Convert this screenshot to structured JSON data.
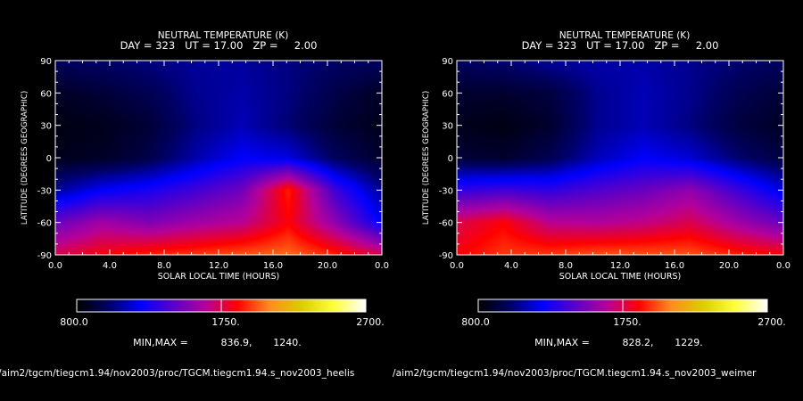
{
  "chart_data": [
    {
      "type": "heatmap",
      "title": "NEUTRAL TEMPERATURE (K)",
      "subtitle": "DAY = 323   UT = 17.00   ZP =     2.00",
      "xlabel": "SOLAR LOCAL TIME (HOURS)",
      "ylabel": "LATITUDE (DEGREES GEOGRAPHIC)",
      "xlim": [
        0,
        24
      ],
      "ylim": [
        -90,
        90
      ],
      "x_ticks": [
        "0.0",
        "4.0",
        "8.0",
        "12.0",
        "16.0",
        "20.0",
        "0.0"
      ],
      "x_tick_values": [
        0,
        4,
        8,
        12,
        16,
        20,
        24
      ],
      "y_ticks": [
        "90",
        "60",
        "30",
        "0",
        "-30",
        "-60",
        "-90"
      ],
      "y_tick_values": [
        90,
        60,
        30,
        0,
        -30,
        -60,
        -90
      ],
      "colorbar": {
        "min_label": "800.0",
        "mid_label": "1750.",
        "max_label": "2700.",
        "range": [
          800,
          2700
        ]
      },
      "minmax_label": "MIN,MAX =",
      "min_value": "836.9,",
      "max_value": "1240.",
      "min": 836.9,
      "max": 1240,
      "field": [
        [
          0.1,
          0.11,
          0.13,
          0.15,
          0.15,
          0.13,
          0.11,
          0.1
        ],
        [
          0.04,
          0.06,
          0.09,
          0.14,
          0.16,
          0.13,
          0.08,
          0.04
        ],
        [
          0.02,
          0.03,
          0.06,
          0.13,
          0.17,
          0.12,
          0.06,
          0.03
        ],
        [
          0.03,
          0.04,
          0.08,
          0.16,
          0.22,
          0.2,
          0.1,
          0.05
        ],
        [
          0.15,
          0.22,
          0.25,
          0.3,
          0.36,
          0.58,
          0.3,
          0.14
        ],
        [
          0.35,
          0.42,
          0.38,
          0.42,
          0.45,
          0.55,
          0.4,
          0.22
        ],
        [
          0.5,
          0.55,
          0.58,
          0.6,
          0.62,
          0.64,
          0.58,
          0.5
        ]
      ]
    },
    {
      "type": "heatmap",
      "title": "NEUTRAL TEMPERATURE (K)",
      "subtitle": "DAY = 323   UT = 17.00   ZP =     2.00",
      "xlabel": "SOLAR LOCAL TIME (HOURS)",
      "ylabel": "LATITUDE (DEGREES GEOGRAPHIC)",
      "xlim": [
        0,
        24
      ],
      "ylim": [
        -90,
        90
      ],
      "x_ticks": [
        "0.0",
        "4.0",
        "8.0",
        "12.0",
        "16.0",
        "20.0",
        "0.0"
      ],
      "x_tick_values": [
        0,
        4,
        8,
        12,
        16,
        20,
        24
      ],
      "y_ticks": [
        "90",
        "60",
        "30",
        "0",
        "-30",
        "-60",
        "-90"
      ],
      "y_tick_values": [
        90,
        60,
        30,
        0,
        -30,
        -60,
        -90
      ],
      "colorbar": {
        "min_label": "800.0",
        "mid_label": "1750.",
        "max_label": "2700.",
        "range": [
          800,
          2700
        ]
      },
      "minmax_label": "MIN,MAX =",
      "min_value": "828.2,",
      "max_value": "1229.",
      "min": 828.2,
      "max": 1229,
      "field": [
        [
          0.1,
          0.12,
          0.15,
          0.16,
          0.16,
          0.14,
          0.12,
          0.1
        ],
        [
          0.05,
          0.05,
          0.07,
          0.14,
          0.17,
          0.14,
          0.09,
          0.06
        ],
        [
          0.03,
          0.02,
          0.05,
          0.14,
          0.17,
          0.13,
          0.07,
          0.04
        ],
        [
          0.06,
          0.05,
          0.09,
          0.17,
          0.22,
          0.19,
          0.12,
          0.07
        ],
        [
          0.28,
          0.3,
          0.28,
          0.32,
          0.35,
          0.4,
          0.3,
          0.2
        ],
        [
          0.5,
          0.55,
          0.45,
          0.44,
          0.46,
          0.5,
          0.42,
          0.35
        ],
        [
          0.55,
          0.6,
          0.6,
          0.62,
          0.62,
          0.62,
          0.58,
          0.55
        ]
      ]
    }
  ],
  "colormap": [
    "#000000",
    "#000066",
    "#0000ff",
    "#5a00c8",
    "#b4009a",
    "#ff0000",
    "#ff8c1e",
    "#dccd00",
    "#ffff3c",
    "#ffffff"
  ],
  "footer": {
    "left": "/aim2/tgcm/tiegcm1.94/nov2003/proc/TGCM.tiegcm1.94.s_nov2003_heelis",
    "right": "/aim2/tgcm/tiegcm1.94/nov2003/proc/TGCM.tiegcm1.94.s_nov2003_weimer"
  }
}
